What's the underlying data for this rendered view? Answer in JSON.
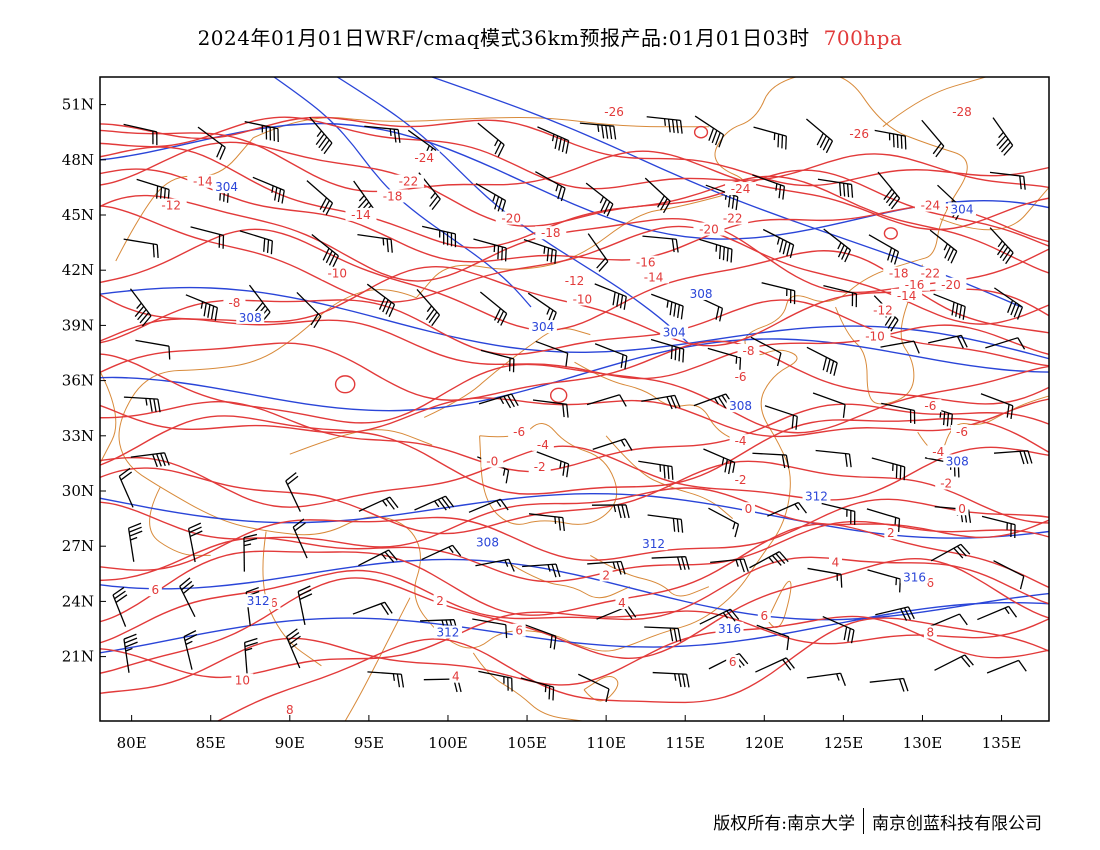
{
  "title": {
    "main": "2024年01月01日WRF/cmaq模式36km预报产品:01月01日03时",
    "level": "700hpa"
  },
  "colors": {
    "temperature": "#e23a3a",
    "geopotential": "#2a45d8",
    "border": "#d88a3a",
    "wind": "#000000"
  },
  "axes": {
    "lat_labels": [
      "51N",
      "48N",
      "45N",
      "42N",
      "39N",
      "36N",
      "33N",
      "30N",
      "27N",
      "24N",
      "21N"
    ],
    "lon_labels": [
      "80E",
      "85E",
      "90E",
      "95E",
      "100E",
      "105E",
      "110E",
      "115E",
      "120E",
      "125E",
      "130E",
      "135E"
    ]
  },
  "contours": {
    "temperature_labels": [
      {
        "text": "-26",
        "lon": 110.5,
        "lat": 50.5
      },
      {
        "text": "-28",
        "lon": 132.5,
        "lat": 50.5
      },
      {
        "text": "-26",
        "lon": 126,
        "lat": 49.3
      },
      {
        "text": "-24",
        "lon": 98.5,
        "lat": 48.0
      },
      {
        "text": "-22",
        "lon": 97.5,
        "lat": 46.7
      },
      {
        "text": "-14",
        "lon": 84.5,
        "lat": 46.7
      },
      {
        "text": "-24",
        "lon": 118.5,
        "lat": 46.3
      },
      {
        "text": "-18",
        "lon": 96.5,
        "lat": 45.9
      },
      {
        "text": "-12",
        "lon": 82.5,
        "lat": 45.4
      },
      {
        "text": "-14",
        "lon": 94.5,
        "lat": 44.9
      },
      {
        "text": "-20",
        "lon": 104,
        "lat": 44.7
      },
      {
        "text": "-22",
        "lon": 118,
        "lat": 44.7
      },
      {
        "text": "-24",
        "lon": 130.5,
        "lat": 45.4
      },
      {
        "text": "-18",
        "lon": 106.5,
        "lat": 43.9
      },
      {
        "text": "-20",
        "lon": 116.5,
        "lat": 44.1
      },
      {
        "text": "-16",
        "lon": 112.5,
        "lat": 42.3
      },
      {
        "text": "-10",
        "lon": 93,
        "lat": 41.7
      },
      {
        "text": "-14",
        "lon": 113,
        "lat": 41.5
      },
      {
        "text": "-12",
        "lon": 108,
        "lat": 41.3
      },
      {
        "text": "-18",
        "lon": 128.5,
        "lat": 41.7
      },
      {
        "text": "-22",
        "lon": 130.5,
        "lat": 41.7
      },
      {
        "text": "-16",
        "lon": 129.5,
        "lat": 41.1
      },
      {
        "text": "-20",
        "lon": 131.8,
        "lat": 41.1
      },
      {
        "text": "-14",
        "lon": 129,
        "lat": 40.5
      },
      {
        "text": "-10",
        "lon": 108.5,
        "lat": 40.3
      },
      {
        "text": "-8",
        "lon": 86.5,
        "lat": 40.1
      },
      {
        "text": "-12",
        "lon": 127.5,
        "lat": 39.7
      },
      {
        "text": "-10",
        "lon": 127,
        "lat": 38.3
      },
      {
        "text": "-8",
        "lon": 119,
        "lat": 37.5
      },
      {
        "text": "-6",
        "lon": 118.5,
        "lat": 36.1
      },
      {
        "text": "-6",
        "lon": 130.5,
        "lat": 34.5
      },
      {
        "text": "-6",
        "lon": 132.5,
        "lat": 33.1
      },
      {
        "text": "-6",
        "lon": 104.5,
        "lat": 33.1
      },
      {
        "text": "-4",
        "lon": 106,
        "lat": 32.4
      },
      {
        "text": "-4",
        "lon": 118.5,
        "lat": 32.6
      },
      {
        "text": "-4",
        "lon": 131,
        "lat": 32.0
      },
      {
        "text": "-0",
        "lon": 102.8,
        "lat": 31.5
      },
      {
        "text": "-2",
        "lon": 105.8,
        "lat": 31.2
      },
      {
        "text": "-2",
        "lon": 118.5,
        "lat": 30.5
      },
      {
        "text": "-2",
        "lon": 131.5,
        "lat": 30.3
      },
      {
        "text": "0",
        "lon": 119,
        "lat": 28.9
      },
      {
        "text": "0",
        "lon": 132.5,
        "lat": 28.9
      },
      {
        "text": "2",
        "lon": 128,
        "lat": 27.6
      },
      {
        "text": "4",
        "lon": 124.5,
        "lat": 26.0
      },
      {
        "text": "2",
        "lon": 110,
        "lat": 25.3
      },
      {
        "text": "2",
        "lon": 99.5,
        "lat": 23.9
      },
      {
        "text": "4",
        "lon": 111,
        "lat": 23.8
      },
      {
        "text": "6",
        "lon": 120,
        "lat": 23.1
      },
      {
        "text": "6",
        "lon": 130.5,
        "lat": 24.9
      },
      {
        "text": "6",
        "lon": 81.5,
        "lat": 24.5
      },
      {
        "text": "6",
        "lon": 89,
        "lat": 23.8
      },
      {
        "text": "6",
        "lon": 104.5,
        "lat": 22.3
      },
      {
        "text": "8",
        "lon": 130.5,
        "lat": 22.2
      },
      {
        "text": "6",
        "lon": 118,
        "lat": 20.6
      },
      {
        "text": "4",
        "lon": 100.5,
        "lat": 19.8
      },
      {
        "text": "10",
        "lon": 87,
        "lat": 19.6
      },
      {
        "text": "8",
        "lon": 90,
        "lat": 18.0
      }
    ],
    "height_labels": [
      {
        "text": "304",
        "lon": 86,
        "lat": 46.4
      },
      {
        "text": "304",
        "lon": 132.5,
        "lat": 45.2
      },
      {
        "text": "308",
        "lon": 116,
        "lat": 40.6
      },
      {
        "text": "304",
        "lon": 106,
        "lat": 38.8
      },
      {
        "text": "308",
        "lon": 87.5,
        "lat": 39.3
      },
      {
        "text": "304",
        "lon": 114.3,
        "lat": 38.5
      },
      {
        "text": "308",
        "lon": 118.5,
        "lat": 34.5
      },
      {
        "text": "308",
        "lon": 132.2,
        "lat": 31.5
      },
      {
        "text": "312",
        "lon": 123.3,
        "lat": 29.6
      },
      {
        "text": "308",
        "lon": 102.5,
        "lat": 27.1
      },
      {
        "text": "312",
        "lon": 113,
        "lat": 27.0
      },
      {
        "text": "312",
        "lon": 88,
        "lat": 23.9
      },
      {
        "text": "316",
        "lon": 129.5,
        "lat": 25.2
      },
      {
        "text": "316",
        "lon": 117.8,
        "lat": 22.4
      },
      {
        "text": "312",
        "lon": 100,
        "lat": 22.2
      }
    ]
  },
  "footer": {
    "copyright": "版权所有:南京大学",
    "company": "南京创蓝科技有限公司"
  }
}
